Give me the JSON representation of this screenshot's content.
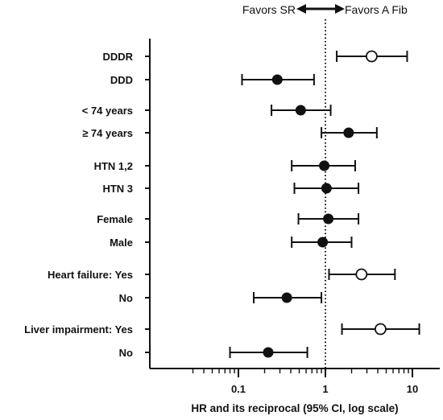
{
  "chart_data": {
    "type": "forest",
    "xscale": "log",
    "xlim": [
      0.03,
      16
    ],
    "reference_line": 1,
    "xlabel": "HR and its reciprocal (95% CI, log scale)",
    "xticks": [
      0.1,
      1,
      10
    ],
    "xtick_labels": [
      "0.1",
      "1",
      "10"
    ],
    "direction_labels": {
      "left": "Favors SR",
      "right": "Favors A Fib"
    },
    "rows": [
      {
        "label": "DDDR",
        "estimate": 3.4,
        "lower": 1.35,
        "upper": 8.7,
        "marker": "open"
      },
      {
        "label": "DDD",
        "estimate": 0.28,
        "lower": 0.11,
        "upper": 0.74,
        "marker": "filled"
      },
      {
        "label": "< 74 years",
        "estimate": 0.52,
        "lower": 0.24,
        "upper": 1.15,
        "marker": "filled"
      },
      {
        "label": "≥ 74 years",
        "estimate": 1.85,
        "lower": 0.9,
        "upper": 3.9,
        "marker": "filled"
      },
      {
        "label": "HTN 1,2",
        "estimate": 0.97,
        "lower": 0.41,
        "upper": 2.2,
        "marker": "filled"
      },
      {
        "label": "HTN 3",
        "estimate": 1.03,
        "lower": 0.44,
        "upper": 2.4,
        "marker": "filled"
      },
      {
        "label": "Female",
        "estimate": 1.08,
        "lower": 0.49,
        "upper": 2.4,
        "marker": "filled"
      },
      {
        "label": "Male",
        "estimate": 0.93,
        "lower": 0.41,
        "upper": 2.0,
        "marker": "filled"
      },
      {
        "label": "Heart failure: Yes",
        "estimate": 2.6,
        "lower": 1.1,
        "upper": 6.3,
        "marker": "open"
      },
      {
        "label": "No",
        "estimate": 0.36,
        "lower": 0.15,
        "upper": 0.9,
        "marker": "filled"
      },
      {
        "label": "Liver impairment: Yes",
        "estimate": 4.3,
        "lower": 1.55,
        "upper": 12.0,
        "marker": "open"
      },
      {
        "label": "No",
        "estimate": 0.22,
        "lower": 0.08,
        "upper": 0.62,
        "marker": "filled"
      }
    ]
  }
}
